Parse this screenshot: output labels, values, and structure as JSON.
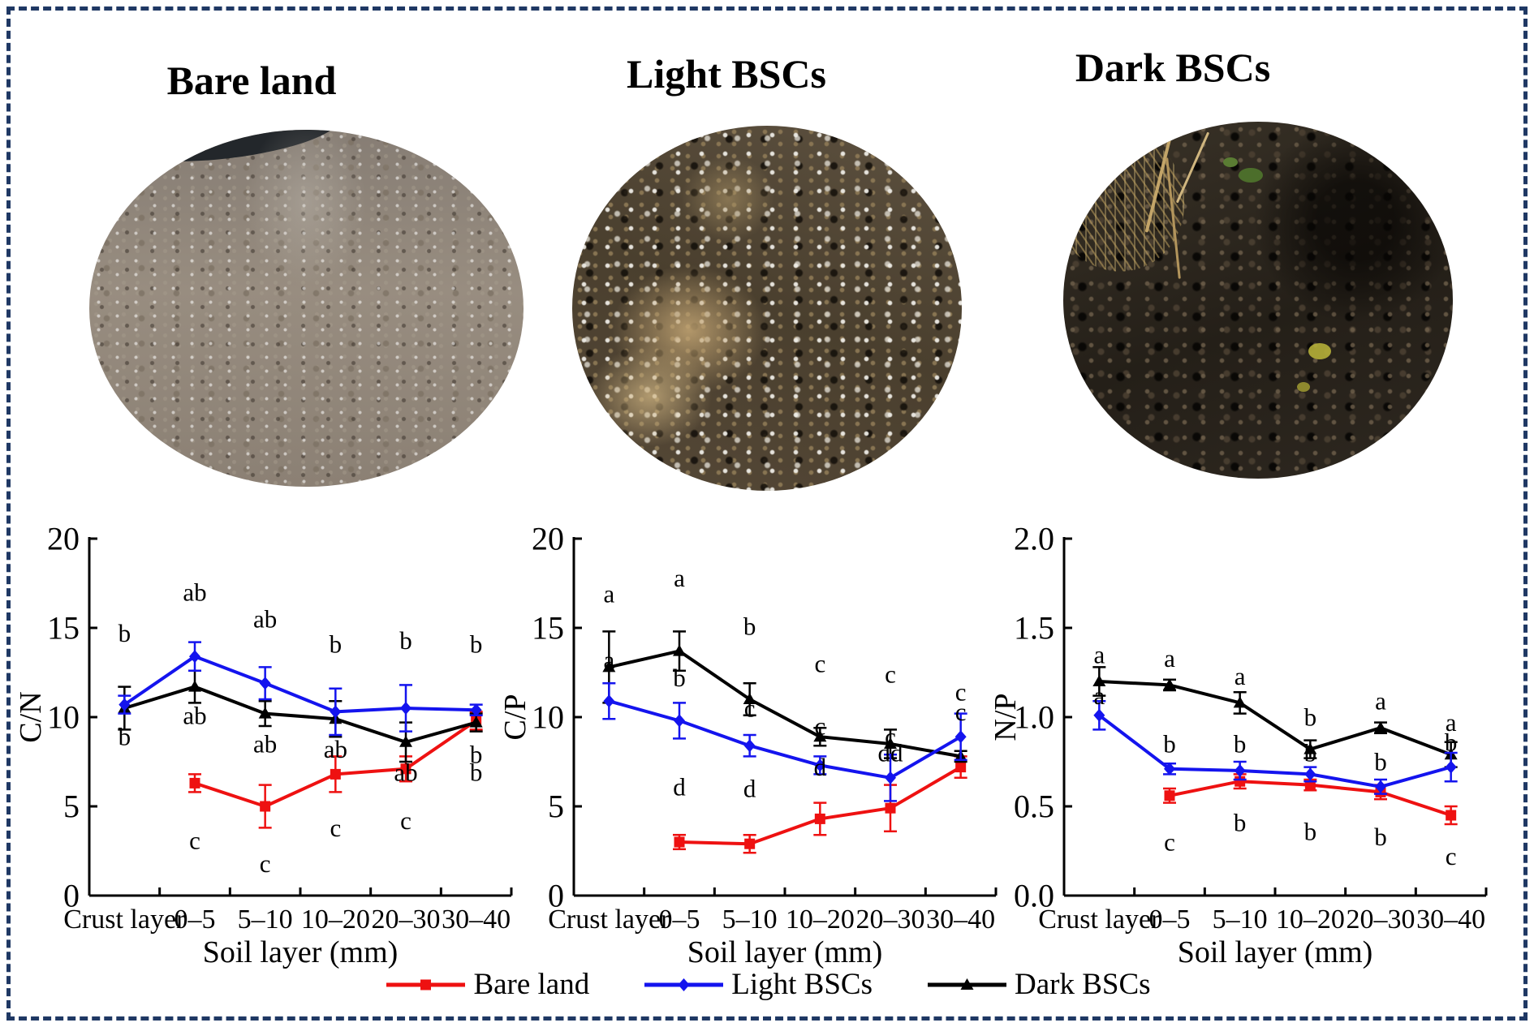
{
  "figure": {
    "border_color": "#1F3864",
    "background": "#FFFFFF"
  },
  "photos": [
    {
      "title": "Bare land"
    },
    {
      "title": "Light BSCs"
    },
    {
      "title": "Dark BSCs"
    }
  ],
  "legend": {
    "items": [
      {
        "label": "Bare land",
        "color": "#EE1111",
        "marker": "square"
      },
      {
        "label": "Light BSCs",
        "color": "#1414EE",
        "marker": "diamond"
      },
      {
        "label": "Dark BSCs",
        "color": "#000000",
        "marker": "triangle"
      }
    ]
  },
  "chart_data": [
    {
      "type": "line",
      "title": "",
      "ylabel": "C/N",
      "xlabel": "Soil layer (mm)",
      "ylim": [
        0,
        20
      ],
      "yticks": [
        0,
        5,
        10,
        15,
        20
      ],
      "ytick_labels": [
        "0",
        "5",
        "10",
        "15",
        "20"
      ],
      "categories": [
        "Crust layer",
        "0–5",
        "5–10",
        "10–20",
        "20–30",
        "30–40"
      ],
      "grid": false,
      "series": [
        {
          "name": "Bare land",
          "color": "#EE1111",
          "marker": "square",
          "values": [
            null,
            6.3,
            5.0,
            6.8,
            7.1,
            9.8
          ],
          "errors": [
            null,
            0.5,
            1.2,
            1.0,
            0.7,
            0.5
          ]
        },
        {
          "name": "Light BSCs",
          "color": "#1414EE",
          "marker": "diamond",
          "values": [
            10.7,
            13.4,
            11.9,
            10.3,
            10.5,
            10.4
          ],
          "errors": [
            0.5,
            0.8,
            0.9,
            1.3,
            1.3,
            0.3
          ]
        },
        {
          "name": "Dark BSCs",
          "color": "#000000",
          "marker": "triangle",
          "values": [
            10.5,
            11.7,
            10.2,
            9.9,
            8.6,
            9.7
          ],
          "errors": [
            1.2,
            0.9,
            0.7,
            1.0,
            1.1,
            0.5
          ]
        }
      ],
      "annotations": [
        {
          "x": 0,
          "y": 14.7,
          "text": "b"
        },
        {
          "x": 0,
          "y": 8.9,
          "text": "b"
        },
        {
          "x": 1,
          "y": 17.0,
          "text": "ab"
        },
        {
          "x": 1,
          "y": 10.1,
          "text": "ab"
        },
        {
          "x": 1,
          "y": 3.1,
          "text": "c"
        },
        {
          "x": 2,
          "y": 15.5,
          "text": "ab"
        },
        {
          "x": 2,
          "y": 8.5,
          "text": "ab"
        },
        {
          "x": 2,
          "y": 1.8,
          "text": "c"
        },
        {
          "x": 3,
          "y": 14.1,
          "text": "b"
        },
        {
          "x": 3,
          "y": 8.2,
          "text": "ab"
        },
        {
          "x": 3,
          "y": 3.8,
          "text": "c"
        },
        {
          "x": 4,
          "y": 14.3,
          "text": "b"
        },
        {
          "x": 4,
          "y": 6.9,
          "text": "ab"
        },
        {
          "x": 4,
          "y": 4.2,
          "text": "c"
        },
        {
          "x": 5,
          "y": 14.1,
          "text": "b"
        },
        {
          "x": 5,
          "y": 7.9,
          "text": "b"
        },
        {
          "x": 5,
          "y": 6.9,
          "text": "b"
        }
      ]
    },
    {
      "type": "line",
      "title": "",
      "ylabel": "C/P",
      "xlabel": "Soil layer (mm)",
      "ylim": [
        0,
        20
      ],
      "yticks": [
        0,
        5,
        10,
        15,
        20
      ],
      "ytick_labels": [
        "0",
        "5",
        "10",
        "15",
        "20"
      ],
      "categories": [
        "Crust layer",
        "0–5",
        "5–10",
        "10–20",
        "20–30",
        "30–40"
      ],
      "grid": false,
      "series": [
        {
          "name": "Bare land",
          "color": "#EE1111",
          "marker": "square",
          "values": [
            null,
            3.0,
            2.9,
            4.3,
            4.9,
            7.2
          ],
          "errors": [
            null,
            0.4,
            0.5,
            0.9,
            1.3,
            0.6
          ]
        },
        {
          "name": "Light BSCs",
          "color": "#1414EE",
          "marker": "diamond",
          "values": [
            10.9,
            9.8,
            8.4,
            7.3,
            6.6,
            8.9
          ],
          "errors": [
            1.0,
            1.0,
            0.6,
            0.5,
            1.3,
            1.3
          ]
        },
        {
          "name": "Dark BSCs",
          "color": "#000000",
          "marker": "triangle",
          "values": [
            12.8,
            13.7,
            11.0,
            8.9,
            8.5,
            7.8
          ],
          "errors": [
            2.0,
            1.1,
            0.9,
            0.5,
            0.8,
            0.3
          ]
        }
      ],
      "annotations": [
        {
          "x": 0,
          "y": 16.9,
          "text": "a"
        },
        {
          "x": 0,
          "y": 13.2,
          "text": "a"
        },
        {
          "x": 1,
          "y": 17.8,
          "text": "a"
        },
        {
          "x": 1,
          "y": 12.2,
          "text": "b"
        },
        {
          "x": 1,
          "y": 6.1,
          "text": "d"
        },
        {
          "x": 2,
          "y": 15.1,
          "text": "b"
        },
        {
          "x": 2,
          "y": 10.5,
          "text": "c"
        },
        {
          "x": 2,
          "y": 6.0,
          "text": "d"
        },
        {
          "x": 3,
          "y": 13.0,
          "text": "c"
        },
        {
          "x": 3,
          "y": 9.5,
          "text": "c"
        },
        {
          "x": 3,
          "y": 7.2,
          "text": "d"
        },
        {
          "x": 4,
          "y": 12.4,
          "text": "c"
        },
        {
          "x": 4,
          "y": 8.9,
          "text": "c"
        },
        {
          "x": 4,
          "y": 8.0,
          "text": "dd"
        },
        {
          "x": 5,
          "y": 11.4,
          "text": "c"
        },
        {
          "x": 5,
          "y": 10.3,
          "text": "c"
        }
      ]
    },
    {
      "type": "line",
      "title": "",
      "ylabel": "N/P",
      "xlabel": "Soil layer (mm)",
      "ylim": [
        0,
        2.0
      ],
      "yticks": [
        0,
        0.5,
        1.0,
        1.5,
        2.0
      ],
      "ytick_labels": [
        "0.0",
        "0.5",
        "1.0",
        "1.5",
        "2.0"
      ],
      "categories": [
        "Crust layer",
        "0–5",
        "5–10",
        "10–20",
        "20–30",
        "30–40"
      ],
      "grid": false,
      "series": [
        {
          "name": "Bare land",
          "color": "#EE1111",
          "marker": "square",
          "values": [
            null,
            0.56,
            0.64,
            0.62,
            0.58,
            0.45
          ],
          "errors": [
            null,
            0.04,
            0.04,
            0.03,
            0.04,
            0.05
          ]
        },
        {
          "name": "Light BSCs",
          "color": "#1414EE",
          "marker": "diamond",
          "values": [
            1.01,
            0.71,
            0.7,
            0.68,
            0.61,
            0.72
          ],
          "errors": [
            0.08,
            0.03,
            0.05,
            0.04,
            0.04,
            0.08
          ]
        },
        {
          "name": "Dark BSCs",
          "color": "#000000",
          "marker": "triangle",
          "values": [
            1.2,
            1.18,
            1.08,
            0.82,
            0.94,
            0.79
          ],
          "errors": [
            0.08,
            0.03,
            0.06,
            0.05,
            0.03,
            0.07
          ]
        }
      ],
      "annotations": [
        {
          "x": 0,
          "y": 1.35,
          "text": "a"
        },
        {
          "x": 0,
          "y": 1.12,
          "text": "a"
        },
        {
          "x": 1,
          "y": 1.33,
          "text": "a"
        },
        {
          "x": 1,
          "y": 0.85,
          "text": "b"
        },
        {
          "x": 1,
          "y": 0.3,
          "text": "c"
        },
        {
          "x": 2,
          "y": 1.23,
          "text": "a"
        },
        {
          "x": 2,
          "y": 0.85,
          "text": "b"
        },
        {
          "x": 2,
          "y": 0.41,
          "text": "b"
        },
        {
          "x": 3,
          "y": 1.0,
          "text": "b"
        },
        {
          "x": 3,
          "y": 0.8,
          "text": "b"
        },
        {
          "x": 3,
          "y": 0.36,
          "text": "b"
        },
        {
          "x": 4,
          "y": 1.09,
          "text": "a"
        },
        {
          "x": 4,
          "y": 0.75,
          "text": "b"
        },
        {
          "x": 4,
          "y": 0.33,
          "text": "b"
        },
        {
          "x": 5,
          "y": 0.97,
          "text": "a"
        },
        {
          "x": 5,
          "y": 0.86,
          "text": "b"
        },
        {
          "x": 5,
          "y": 0.22,
          "text": "c"
        }
      ]
    }
  ]
}
